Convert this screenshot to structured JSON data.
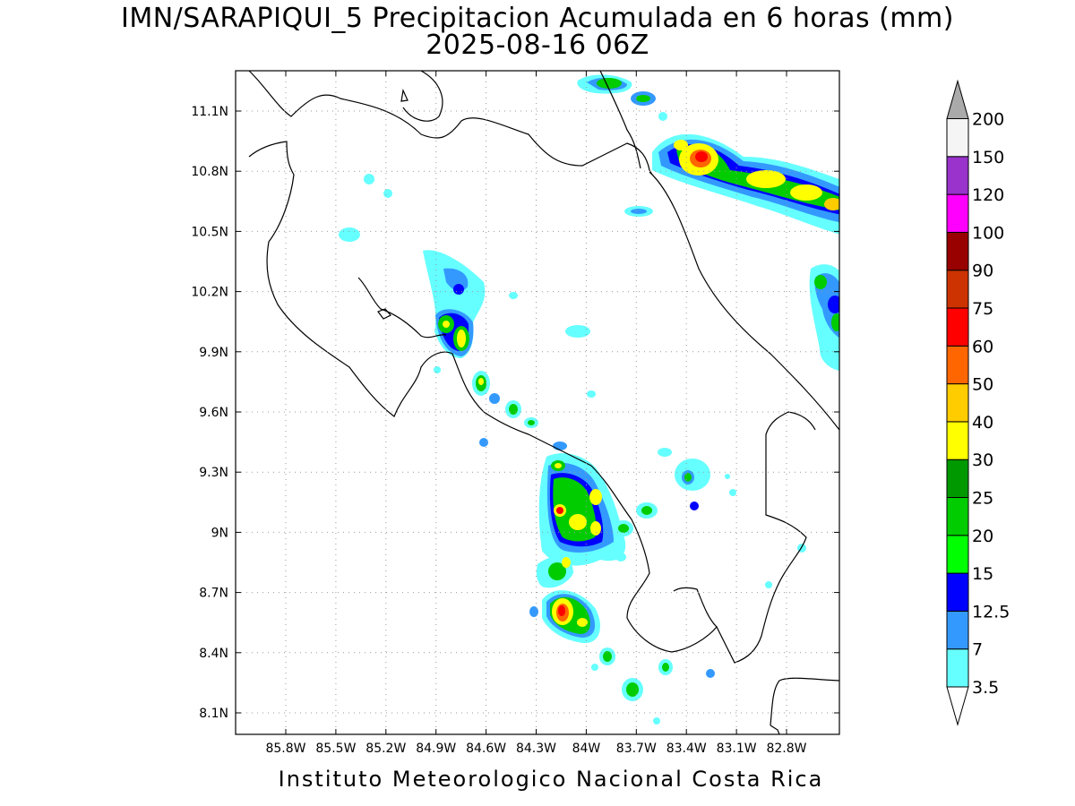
{
  "title_line1": "IMN/SARAPIQUI_5 Precipitacion Acumulada en 6 horas (mm)",
  "title_line2": "2025-08-16 06Z",
  "footer": "Instituto Meteorologico Nacional Costa Rica",
  "lon_ticks": [
    {
      "lon": -85.8,
      "label": "85.8W"
    },
    {
      "lon": -85.5,
      "label": "85.5W"
    },
    {
      "lon": -85.2,
      "label": "85.2W"
    },
    {
      "lon": -84.9,
      "label": "84.9W"
    },
    {
      "lon": -84.6,
      "label": "84.6W"
    },
    {
      "lon": -84.3,
      "label": "84.3W"
    },
    {
      "lon": -84.0,
      "label": "84W"
    },
    {
      "lon": -83.7,
      "label": "83.7W"
    },
    {
      "lon": -83.4,
      "label": "83.4W"
    },
    {
      "lon": -83.1,
      "label": "83.1W"
    },
    {
      "lon": -82.8,
      "label": "82.8W"
    }
  ],
  "lat_ticks": [
    {
      "lat": 11.1,
      "label": "11.1N"
    },
    {
      "lat": 10.8,
      "label": "10.8N"
    },
    {
      "lat": 10.5,
      "label": "10.5N"
    },
    {
      "lat": 10.2,
      "label": "10.2N"
    },
    {
      "lat": 9.9,
      "label": "9.9N"
    },
    {
      "lat": 9.6,
      "label": "9.6N"
    },
    {
      "lat": 9.3,
      "label": "9.3N"
    },
    {
      "lat": 9.0,
      "label": "9N"
    },
    {
      "lat": 8.7,
      "label": "8.7N"
    },
    {
      "lat": 8.4,
      "label": "8.4N"
    },
    {
      "lat": 8.1,
      "label": "8.1N"
    }
  ],
  "colorbar": {
    "levels": [
      "3.5",
      "7",
      "12.5",
      "15",
      "20",
      "25",
      "30",
      "40",
      "50",
      "60",
      "75",
      "90",
      "100",
      "120",
      "150",
      "200"
    ],
    "colors": [
      "#66ffff",
      "#3399ff",
      "#0000ff",
      "#00ff00",
      "#00cc00",
      "#009900",
      "#ffff00",
      "#ffcc00",
      "#ff6600",
      "#ff0000",
      "#cc3300",
      "#990000",
      "#ff00ff",
      "#9933cc",
      "#f5f5f5",
      "#aaaaaa"
    ]
  },
  "precip_cells": [
    {
      "lon": -83.35,
      "lat": 10.87,
      "mm": 60
    },
    {
      "lon": -82.95,
      "lat": 10.75,
      "mm": 40
    },
    {
      "lon": -82.75,
      "lat": 10.7,
      "mm": 40
    },
    {
      "lon": -82.62,
      "lat": 10.64,
      "mm": 50
    },
    {
      "lon": -83.87,
      "lat": 11.24,
      "mm": 20
    },
    {
      "lon": -83.76,
      "lat": 11.17,
      "mm": 15
    },
    {
      "lon": -84.75,
      "lat": 9.98,
      "mm": 40
    },
    {
      "lon": -84.82,
      "lat": 10.05,
      "mm": 25
    },
    {
      "lon": -84.67,
      "lat": 9.75,
      "mm": 25
    },
    {
      "lon": -84.1,
      "lat": 9.09,
      "mm": 75
    },
    {
      "lon": -84.09,
      "lat": 8.62,
      "mm": 60
    },
    {
      "lon": -84.02,
      "lat": 8.58,
      "mm": 40
    },
    {
      "lon": -84.02,
      "lat": 9.05,
      "mm": 30
    },
    {
      "lon": -83.93,
      "lat": 9.18,
      "mm": 30
    },
    {
      "lon": -84.08,
      "lat": 8.82,
      "mm": 20
    },
    {
      "lon": -83.7,
      "lat": 8.22,
      "mm": 20
    },
    {
      "lon": -83.78,
      "lat": 9.0,
      "mm": 20
    },
    {
      "lon": -84.38,
      "lat": 9.62,
      "mm": 20
    },
    {
      "lon": -84.12,
      "lat": 9.33,
      "mm": 20
    },
    {
      "lon": -83.35,
      "lat": 9.27,
      "mm": 15
    },
    {
      "lon": -82.95,
      "lat": 10.25,
      "mm": 15
    },
    {
      "lon": -82.92,
      "lat": 10.08,
      "mm": 12.5
    }
  ]
}
